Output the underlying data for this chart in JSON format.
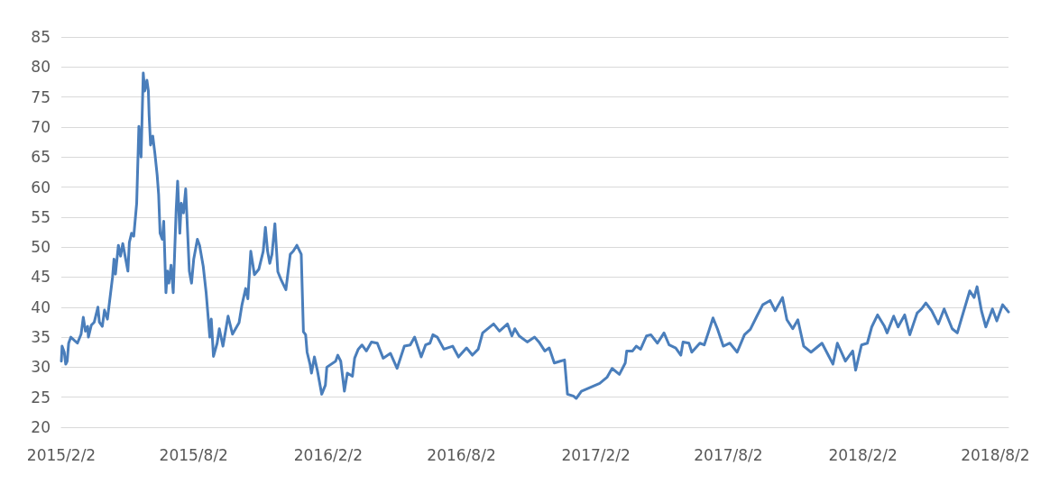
{
  "chart_data": {
    "type": "line",
    "x": [
      "2015-02-02",
      "2015-02-03",
      "2015-02-06",
      "2015-02-08",
      "2015-02-10",
      "2015-02-12",
      "2015-02-15",
      "2015-02-24",
      "2015-03-01",
      "2015-03-04",
      "2015-03-07",
      "2015-03-10",
      "2015-03-11",
      "2015-03-15",
      "2015-03-19",
      "2015-03-24",
      "2015-03-26",
      "2015-03-30",
      "2015-04-02",
      "2015-04-06",
      "2015-04-13",
      "2015-04-15",
      "2015-04-17",
      "2015-04-21",
      "2015-04-24",
      "2015-04-27",
      "2015-05-04",
      "2015-05-06",
      "2015-05-09",
      "2015-05-12",
      "2015-05-16",
      "2015-05-19",
      "2015-05-22",
      "2015-05-25",
      "2015-05-27",
      "2015-05-30",
      "2015-06-01",
      "2015-06-02",
      "2015-06-04",
      "2015-06-07",
      "2015-06-10",
      "2015-06-13",
      "2015-06-15",
      "2015-06-17",
      "2015-06-20",
      "2015-06-22",
      "2015-06-25",
      "2015-06-27",
      "2015-06-29",
      "2015-07-02",
      "2015-07-05",
      "2015-07-09",
      "2015-07-11",
      "2015-07-14",
      "2015-07-16",
      "2015-07-19",
      "2015-07-22",
      "2015-07-27",
      "2015-07-30",
      "2015-08-02",
      "2015-08-07",
      "2015-08-10",
      "2015-08-15",
      "2015-08-19",
      "2015-08-24",
      "2015-08-26",
      "2015-08-29",
      "2015-09-03",
      "2015-09-06",
      "2015-09-11",
      "2015-09-18",
      "2015-09-24",
      "2015-10-03",
      "2015-10-07",
      "2015-10-12",
      "2015-10-15",
      "2015-10-19",
      "2015-10-24",
      "2015-10-30",
      "2015-11-05",
      "2015-11-08",
      "2015-11-11",
      "2015-11-14",
      "2015-11-17",
      "2015-11-21",
      "2015-11-25",
      "2015-11-30",
      "2015-12-06",
      "2015-12-12",
      "2015-12-16",
      "2015-12-21",
      "2015-12-27",
      "2015-12-30",
      "2016-01-02",
      "2016-01-04",
      "2016-01-08",
      "2016-01-10",
      "2016-01-14",
      "2016-01-18",
      "2016-01-24",
      "2016-01-29",
      "2016-01-31",
      "2016-02-12",
      "2016-02-15",
      "2016-02-19",
      "2016-02-24",
      "2016-02-28",
      "2016-03-06",
      "2016-03-09",
      "2016-03-14",
      "2016-03-19",
      "2016-03-25",
      "2016-04-01",
      "2016-04-09",
      "2016-04-17",
      "2016-04-27",
      "2016-05-06",
      "2016-05-16",
      "2016-05-24",
      "2016-05-30",
      "2016-06-08",
      "2016-06-14",
      "2016-06-20",
      "2016-06-24",
      "2016-06-30",
      "2016-07-09",
      "2016-07-21",
      "2016-07-29",
      "2016-08-09",
      "2016-08-17",
      "2016-08-25",
      "2016-08-31",
      "2016-09-06",
      "2016-09-15",
      "2016-09-23",
      "2016-10-04",
      "2016-10-10",
      "2016-10-14",
      "2016-10-20",
      "2016-10-31",
      "2016-11-10",
      "2016-11-16",
      "2016-11-24",
      "2016-11-30",
      "2016-12-07",
      "2016-12-15",
      "2016-12-21",
      "2016-12-25",
      "2017-01-02",
      "2017-01-06",
      "2017-01-13",
      "2017-02-07",
      "2017-02-17",
      "2017-02-24",
      "2017-03-06",
      "2017-03-14",
      "2017-03-16",
      "2017-03-24",
      "2017-03-29",
      "2017-04-04",
      "2017-04-12",
      "2017-04-18",
      "2017-04-27",
      "2017-05-06",
      "2017-05-13",
      "2017-05-22",
      "2017-05-29",
      "2017-06-01",
      "2017-06-09",
      "2017-06-13",
      "2017-06-24",
      "2017-06-30",
      "2017-07-06",
      "2017-07-12",
      "2017-07-18",
      "2017-07-26",
      "2017-08-04",
      "2017-08-14",
      "2017-08-24",
      "2017-09-01",
      "2017-09-10",
      "2017-09-18",
      "2017-09-28",
      "2017-10-05",
      "2017-10-15",
      "2017-10-21",
      "2017-10-29",
      "2017-11-05",
      "2017-11-13",
      "2017-11-23",
      "2017-12-08",
      "2017-12-23",
      "2017-12-29",
      "2018-01-09",
      "2018-01-19",
      "2018-01-23",
      "2018-01-31",
      "2018-02-08",
      "2018-02-14",
      "2018-02-22",
      "2018-03-03",
      "2018-03-07",
      "2018-03-16",
      "2018-03-22",
      "2018-03-31",
      "2018-04-07",
      "2018-04-17",
      "2018-04-23",
      "2018-04-29",
      "2018-05-07",
      "2018-05-16",
      "2018-05-24",
      "2018-06-04",
      "2018-06-11",
      "2018-06-17",
      "2018-06-28",
      "2018-07-04",
      "2018-07-08",
      "2018-07-14",
      "2018-07-20",
      "2018-07-29",
      "2018-08-04",
      "2018-08-12",
      "2018-08-20"
    ],
    "series": [
      {
        "color": "#4a7ebb",
        "values": [
          31,
          33.5,
          32.5,
          30.5,
          31,
          34,
          35,
          34,
          35.5,
          38.3,
          36,
          36.8,
          35,
          37,
          37.5,
          40,
          37.5,
          36.8,
          39.5,
          38,
          45,
          48,
          45.5,
          50.3,
          48.5,
          50.6,
          46,
          50.8,
          52.3,
          51.8,
          57.3,
          70.1,
          65,
          79,
          76,
          77.8,
          76,
          72,
          67,
          68.5,
          65.5,
          62,
          58.8,
          52.3,
          51.3,
          54.3,
          42.4,
          46,
          44,
          47,
          42.4,
          56.2,
          61,
          52.3,
          57.3,
          55.7,
          59.7,
          46,
          44,
          48,
          51.3,
          50.3,
          46.8,
          42.4,
          35,
          38,
          31.8,
          34,
          36.4,
          33.5,
          38.5,
          35.5,
          37.4,
          40.4,
          43.1,
          41.4,
          49.3,
          45.4,
          46.3,
          49.3,
          53.3,
          49.3,
          47.3,
          48.8,
          53.9,
          45.9,
          44.4,
          42.9,
          48.8,
          49.3,
          50.3,
          48.8,
          35.9,
          35.4,
          32.5,
          30.5,
          29,
          31.7,
          29.5,
          25.5,
          27,
          30,
          31,
          32,
          31,
          26,
          29,
          28.5,
          31.5,
          33,
          33.7,
          32.7,
          34.2,
          34,
          31.5,
          32.3,
          29.8,
          33.5,
          33.7,
          35,
          31.7,
          33.7,
          34,
          35.4,
          35,
          33,
          33.5,
          31.7,
          33.2,
          32,
          33,
          35.7,
          36.3,
          37.2,
          36,
          37.2,
          35.2,
          36.4,
          35.2,
          34.2,
          35,
          34.2,
          32.7,
          33.2,
          30.7,
          31,
          31.2,
          25.5,
          25.2,
          24.8,
          26,
          27.3,
          28.3,
          29.8,
          28.8,
          30.7,
          32.7,
          32.7,
          33.5,
          33,
          35.2,
          35.4,
          34,
          35.7,
          33.7,
          33.2,
          32,
          34.2,
          34,
          32.5,
          34,
          33.7,
          35.9,
          38.2,
          36.4,
          33.5,
          34,
          32.5,
          35.4,
          36.3,
          38.5,
          40.4,
          41.1,
          39.4,
          41.6,
          37.9,
          36.4,
          37.9,
          33.5,
          32.5,
          34,
          30.5,
          34,
          31,
          32.7,
          29.5,
          33.7,
          34,
          36.7,
          38.7,
          36.9,
          35.7,
          38.5,
          36.7,
          38.7,
          35.4,
          39,
          39.7,
          40.7,
          39.4,
          37.2,
          39.7,
          36.4,
          35.7,
          38.2,
          42.7,
          41.6,
          43.4,
          39.4,
          36.7,
          39.7,
          37.7,
          40.4,
          39.2
        ]
      }
    ],
    "xlim": [
      "2015-02-02",
      "2018-08-20"
    ],
    "xticks": [
      {
        "value": "2015-02-02",
        "label": "2015/2/2"
      },
      {
        "value": "2015-08-02",
        "label": "2015/8/2"
      },
      {
        "value": "2016-02-02",
        "label": "2016/2/2"
      },
      {
        "value": "2016-08-02",
        "label": "2016/8/2"
      },
      {
        "value": "2017-02-02",
        "label": "2017/2/2"
      },
      {
        "value": "2017-08-02",
        "label": "2017/8/2"
      },
      {
        "value": "2018-02-02",
        "label": "2018/2/2"
      },
      {
        "value": "2018-08-02",
        "label": "2018/8/2"
      }
    ],
    "ylim": [
      20,
      85
    ],
    "yticks": [
      20,
      25,
      30,
      35,
      40,
      45,
      50,
      55,
      60,
      65,
      70,
      75,
      80,
      85
    ],
    "grid": "y",
    "marker": "none",
    "line_style": "solid"
  }
}
